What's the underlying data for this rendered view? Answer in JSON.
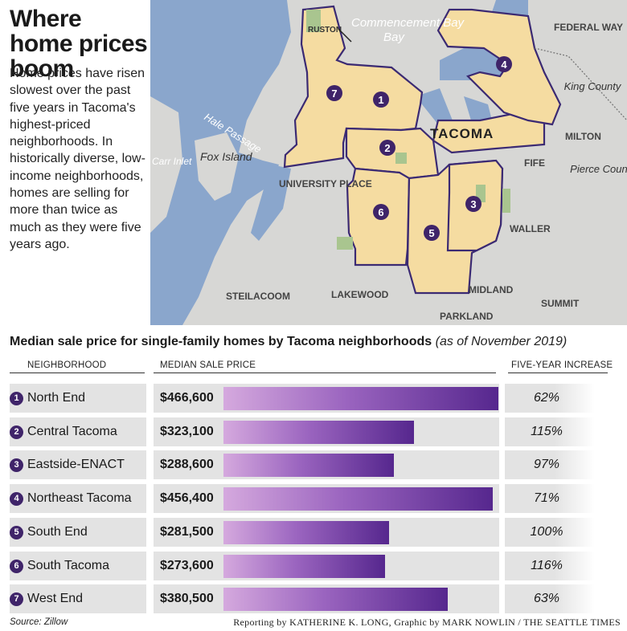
{
  "headline": "Where home prices boom",
  "intro": "Home prices have risen slowest over the past five years in Tacoma's highest-priced neighborhoods. In historically diverse, low-income neighborhoods, homes are selling for more than twice as much as they were five years ago.",
  "map": {
    "labels": {
      "ruston": "RUSTON",
      "commencement_bay": "Commencement Bay",
      "federal_way": "FEDERAL WAY",
      "king_county": "King County",
      "hale_passage": "Hale Passage",
      "carr_inlet": "Carr Inlet",
      "fox_island": "Fox Island",
      "tacoma": "TACOMA",
      "milton": "MILTON",
      "fife": "FIFE",
      "pierce_county": "Pierce County",
      "university_place": "UNIVERSITY PLACE",
      "waller": "WALLER",
      "steilacoom": "STEILACOOM",
      "lakewood": "LAKEWOOD",
      "midland": "MIDLAND",
      "summit": "SUMMIT",
      "parkland": "PARKLAND"
    },
    "markers": [
      "1",
      "2",
      "3",
      "4",
      "5",
      "6",
      "7"
    ],
    "colors": {
      "water": "#8aa6cc",
      "land": "#d7d7d5",
      "neighborhood": "#f5dca1",
      "boundary": "#3b2a73",
      "park": "#a9c58f"
    }
  },
  "chart_data": {
    "type": "bar",
    "title": "Median sale price for single-family homes by Tacoma neighborhoods",
    "title_note": "(as of November 2019)",
    "column_headers": [
      "NEIGHBORHOOD",
      "MEDIAN SALE PRICE",
      "FIVE-YEAR INCREASE"
    ],
    "categories": [
      "North End",
      "Central Tacoma",
      "Eastside-ENACT",
      "Northeast Tacoma",
      "South End",
      "South Tacoma",
      "West End"
    ],
    "markers": [
      "1",
      "2",
      "3",
      "4",
      "5",
      "6",
      "7"
    ],
    "series": [
      {
        "values": [
          466600,
          323100,
          288600,
          456400,
          281500,
          273600,
          380500
        ]
      }
    ],
    "value_labels": [
      "$466,600",
      "$323,100",
      "$288,600",
      "$456,400",
      "$281,500",
      "$273,600",
      "$380,500"
    ],
    "five_year_increase": [
      "62%",
      "115%",
      "97%",
      "71%",
      "100%",
      "116%",
      "63%"
    ],
    "ylim": [
      0,
      466600
    ],
    "colors": {
      "bar_start": "#d5a9de",
      "bar_end": "#56278e",
      "marker": "#3f2469"
    }
  },
  "footer": {
    "source": "Source: Zillow",
    "credit_prefix": "Reporting by",
    "reporter": "KATHERINE K. LONG",
    "credit_middle": ", Graphic by",
    "designer": "MARK NOWLIN / THE SEATTLE TIMES"
  }
}
